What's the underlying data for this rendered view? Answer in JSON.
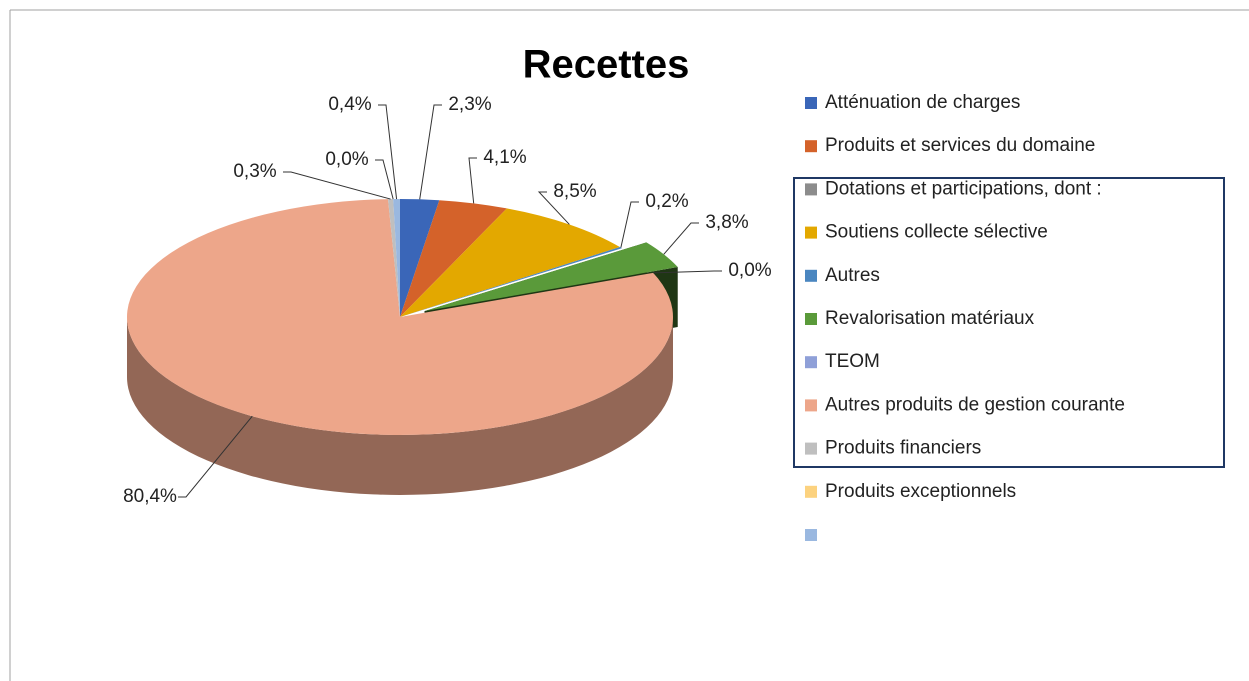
{
  "chart_data": {
    "type": "pie3d",
    "title": "Recettes",
    "categories": [
      "Atténuation de charges",
      "Produits et services du domaine",
      "Dotations et participations, dont :",
      "Soutiens collecte sélective",
      "Autres",
      "Revalorisation matériaux",
      "TEOM",
      "Autres produits de gestion courante",
      "Produits financiers",
      "Produits exceptionnels",
      null
    ],
    "values": [
      2.3,
      4.1,
      null,
      8.5,
      0.2,
      3.8,
      0.0,
      80.4,
      0.3,
      0.0,
      0.4
    ],
    "value_labels": [
      "2,3%",
      "4,1%",
      null,
      "8,5%",
      "0,2%",
      "3,8%",
      "0,0%",
      "80,4%",
      "0,3%",
      "0,0%",
      "0,4%"
    ],
    "colors": [
      "#3a66b8",
      "#d4622a",
      "#8c8c8c",
      "#e3a800",
      "#4a86c0",
      "#5a9a3a",
      "#8fa0d8",
      "#eda68a",
      "#bfbfbf",
      "#fcd27f",
      "#9ab8e0"
    ],
    "exploded": [
      5
    ],
    "legend": "right"
  }
}
